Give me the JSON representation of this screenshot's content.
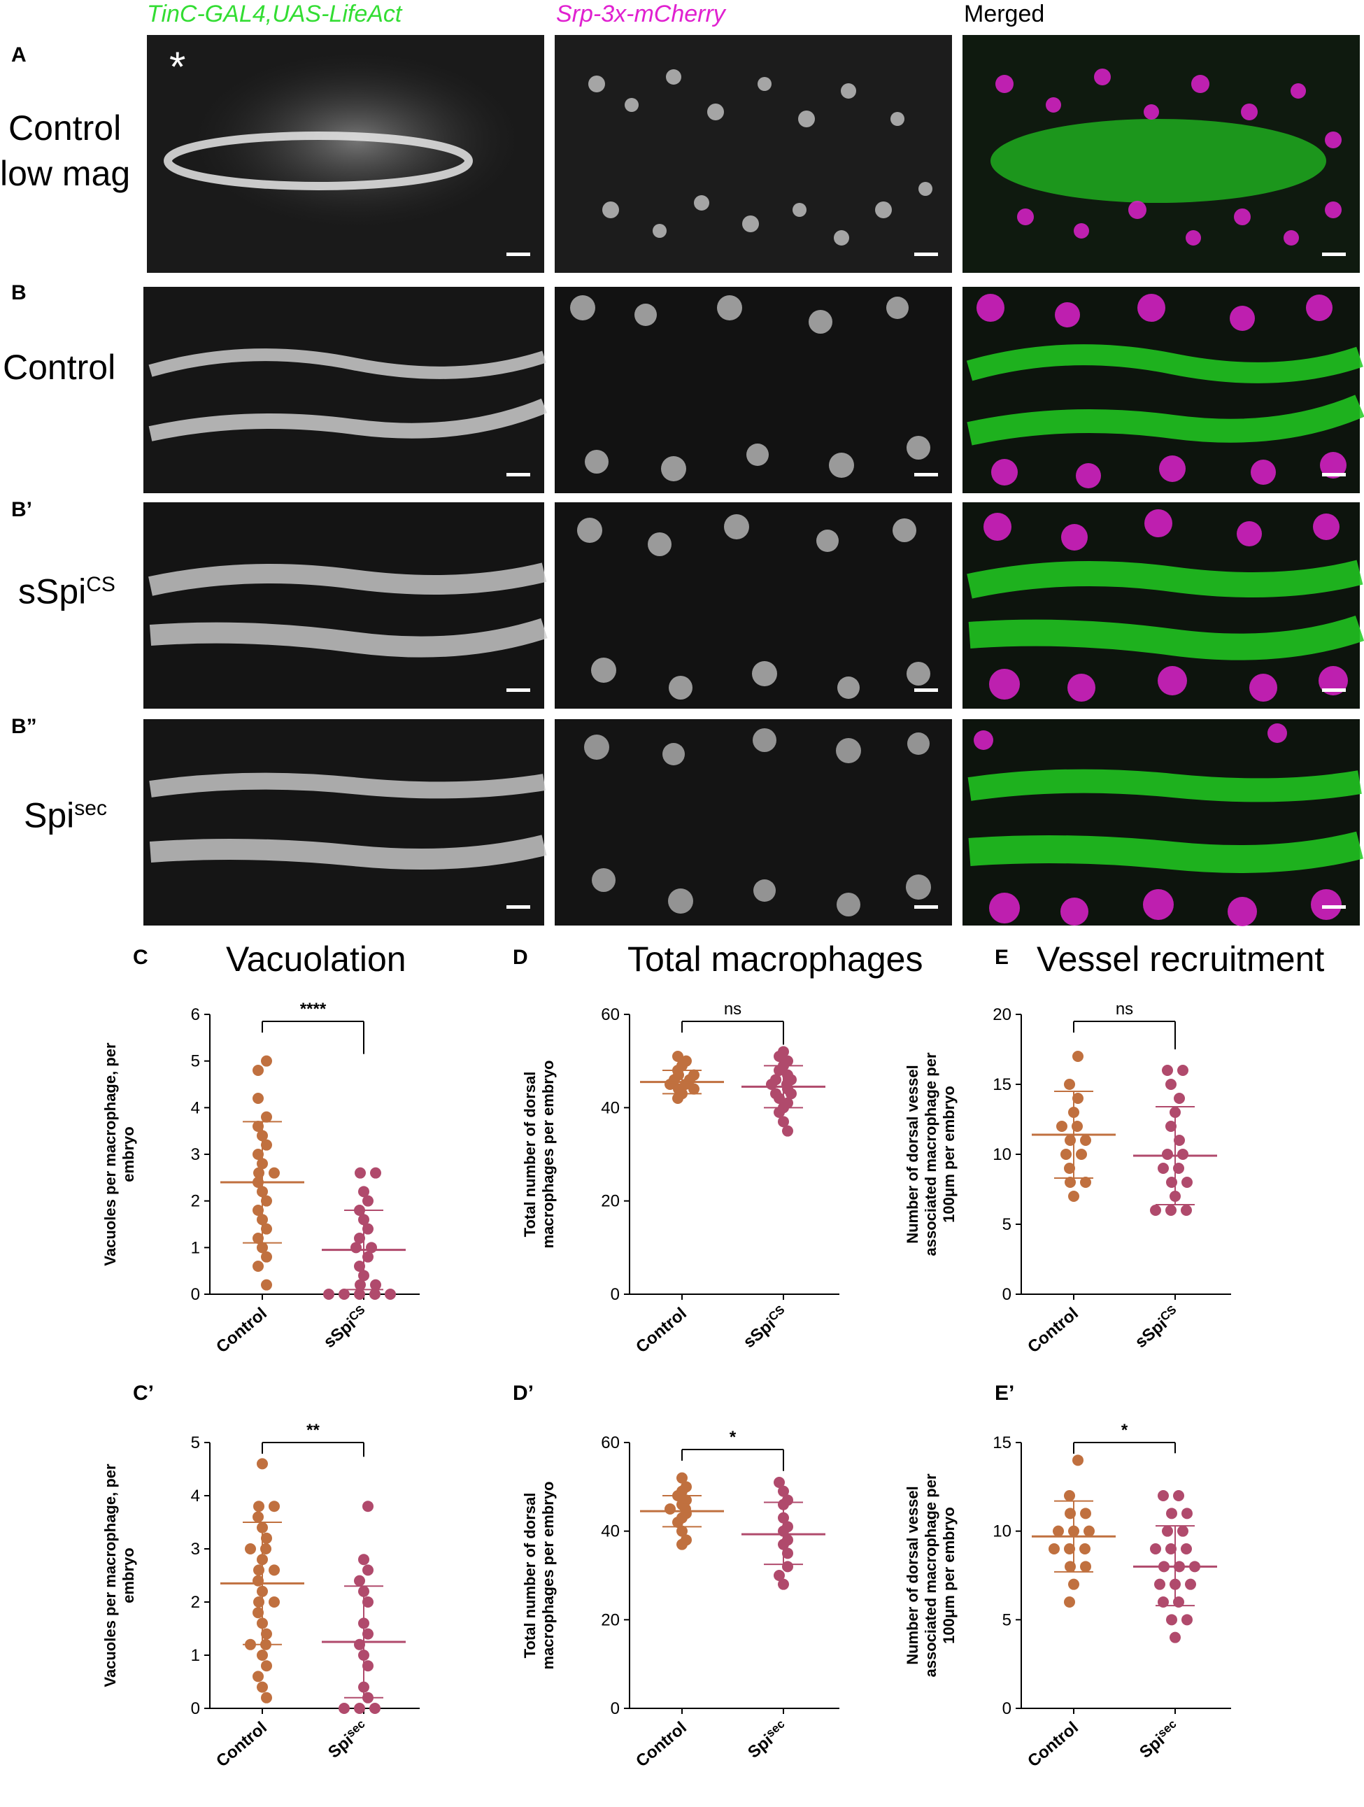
{
  "columns": {
    "c1": "TinC-GAL4,UAS-LifeAct",
    "c2": "Srp-3x-mCherry",
    "c3": "Merged",
    "c1_color": "#33dd33",
    "c2_color": "#e020d0"
  },
  "rows": {
    "A": {
      "letter": "A",
      "label_line1": "Control",
      "label_line2": "low mag",
      "marker": "*"
    },
    "B": {
      "letter": "B",
      "label": "Control"
    },
    "B1": {
      "letter": "B’",
      "label_main": "sSpi",
      "label_sup": "CS"
    },
    "B2": {
      "letter": "B”",
      "label_main": "Spi",
      "label_sup": "sec"
    }
  },
  "colors": {
    "control": "#c0703f",
    "treat": "#b04a6c",
    "green": "#22dd22",
    "magenta": "#e020d0"
  },
  "chart_data": [
    {
      "id": "C",
      "letter": "C",
      "type": "scatter",
      "title": "Vacuolation",
      "ylabel": "Vacuoles per macrophage, per embryo",
      "ylim": [
        0,
        6
      ],
      "yticks": [
        0,
        1,
        2,
        3,
        4,
        5,
        6
      ],
      "categories": [
        "Control",
        "sSpi"
      ],
      "category_sup": [
        "",
        "CS"
      ],
      "significance": "****",
      "series": [
        {
          "values": [
            5.0,
            4.8,
            4.2,
            3.8,
            3.6,
            3.4,
            3.2,
            3.0,
            2.8,
            2.6,
            2.6,
            2.4,
            2.2,
            2.0,
            1.8,
            1.6,
            1.4,
            1.2,
            1.0,
            0.8,
            0.6,
            0.2
          ],
          "mean": 2.4,
          "sd_low": 1.1,
          "sd_high": 3.7
        },
        {
          "values": [
            2.6,
            2.6,
            2.2,
            2.0,
            1.8,
            1.6,
            1.4,
            1.2,
            1.0,
            1.0,
            0.8,
            0.6,
            0.4,
            0.2,
            0.2,
            0.0,
            0.0,
            0.0,
            0.0,
            0.0
          ],
          "mean": 0.95,
          "sd_low": 0.1,
          "sd_high": 1.8
        }
      ]
    },
    {
      "id": "D",
      "letter": "D",
      "type": "scatter",
      "title": "Total macrophages",
      "ylabel": "Total number of dorsal macrophages per embryo",
      "ylim": [
        0,
        60
      ],
      "yticks": [
        0,
        20,
        40,
        60
      ],
      "categories": [
        "Control",
        "sSpi"
      ],
      "category_sup": [
        "",
        "CS"
      ],
      "significance": "ns",
      "series": [
        {
          "values": [
            51,
            50,
            49,
            48,
            47,
            47,
            46,
            46,
            45,
            45,
            44,
            44,
            43,
            42
          ],
          "mean": 45.5,
          "sd_low": 43,
          "sd_high": 48
        },
        {
          "values": [
            52,
            51,
            50,
            49,
            48,
            47,
            46,
            46,
            45,
            45,
            44,
            43,
            43,
            42,
            41,
            40,
            39,
            37,
            35
          ],
          "mean": 44.5,
          "sd_low": 40,
          "sd_high": 49
        }
      ]
    },
    {
      "id": "E",
      "letter": "E",
      "type": "scatter",
      "title": "Vessel recruitment",
      "ylabel": "Number of dorsal vessel associated macrophage per 100μm per embryo",
      "ylim": [
        0,
        20
      ],
      "yticks": [
        0,
        5,
        10,
        15,
        20
      ],
      "categories": [
        "Control",
        "sSpi"
      ],
      "category_sup": [
        "",
        "CS"
      ],
      "significance": "ns",
      "series": [
        {
          "values": [
            17,
            15,
            14,
            13,
            12,
            12,
            11,
            11,
            10,
            10,
            9,
            8,
            8,
            7
          ],
          "mean": 11.4,
          "sd_low": 8.3,
          "sd_high": 14.5
        },
        {
          "values": [
            16,
            16,
            15,
            14,
            13,
            12,
            11,
            10,
            10,
            9,
            9,
            8,
            8,
            7,
            6,
            6,
            6
          ],
          "mean": 9.9,
          "sd_low": 6.4,
          "sd_high": 13.4
        }
      ]
    },
    {
      "id": "C1",
      "letter": "C’",
      "type": "scatter",
      "title": "",
      "ylabel": "Vacuoles per macrophage, per embryo",
      "ylim": [
        0,
        5
      ],
      "yticks": [
        0,
        1,
        2,
        3,
        4,
        5
      ],
      "categories": [
        "Control",
        "Spi"
      ],
      "category_sup": [
        "",
        "sec"
      ],
      "significance": "**",
      "series": [
        {
          "values": [
            4.6,
            3.8,
            3.8,
            3.6,
            3.4,
            3.2,
            3.0,
            3.0,
            2.8,
            2.6,
            2.6,
            2.4,
            2.2,
            2.0,
            2.0,
            1.8,
            1.6,
            1.4,
            1.2,
            1.2,
            1.0,
            0.8,
            0.6,
            0.4,
            0.2
          ],
          "mean": 2.35,
          "sd_low": 1.2,
          "sd_high": 3.5
        },
        {
          "values": [
            3.8,
            2.8,
            2.6,
            2.4,
            2.2,
            2.0,
            1.6,
            1.4,
            1.2,
            1.0,
            0.8,
            0.4,
            0.2,
            0.0,
            0.0,
            0.0
          ],
          "mean": 1.25,
          "sd_low": 0.2,
          "sd_high": 2.3
        }
      ]
    },
    {
      "id": "D1",
      "letter": "D’",
      "type": "scatter",
      "title": "",
      "ylabel": "Total number of dorsal macrophages per embryo",
      "ylim": [
        0,
        60
      ],
      "yticks": [
        0,
        20,
        40,
        60
      ],
      "categories": [
        "Control",
        "Spi"
      ],
      "category_sup": [
        "",
        "sec"
      ],
      "significance": "*",
      "series": [
        {
          "values": [
            52,
            50,
            49,
            48,
            47,
            46,
            45,
            45,
            44,
            43,
            42,
            40,
            38,
            37
          ],
          "mean": 44.5,
          "sd_low": 41,
          "sd_high": 48
        },
        {
          "values": [
            51,
            49,
            47,
            46,
            43,
            41,
            40,
            38,
            37,
            35,
            32,
            30,
            28
          ],
          "mean": 39.3,
          "sd_low": 32.5,
          "sd_high": 46.5
        }
      ]
    },
    {
      "id": "E1",
      "letter": "E’",
      "type": "scatter",
      "title": "",
      "ylabel": "Number of dorsal vessel associated macrophage per 100μm per embryo",
      "ylim": [
        0,
        15
      ],
      "yticks": [
        0,
        5,
        10,
        15
      ],
      "categories": [
        "Control",
        "Spi"
      ],
      "category_sup": [
        "",
        "sec"
      ],
      "significance": "*",
      "series": [
        {
          "values": [
            14,
            12,
            11,
            11,
            10,
            10,
            10,
            9,
            9,
            9,
            8,
            8,
            7,
            6
          ],
          "mean": 9.7,
          "sd_low": 7.7,
          "sd_high": 11.7
        },
        {
          "values": [
            12,
            12,
            11,
            11,
            10,
            10,
            9,
            9,
            9,
            8,
            8,
            8,
            7,
            7,
            7,
            6,
            6,
            5,
            5,
            4
          ],
          "mean": 8.0,
          "sd_low": 5.8,
          "sd_high": 10.3
        }
      ]
    }
  ]
}
